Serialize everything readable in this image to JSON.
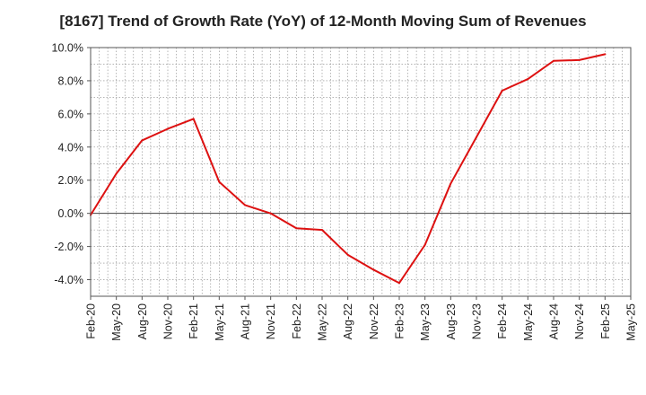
{
  "chart_data": {
    "type": "line",
    "title": "[8167]  Trend of Growth Rate (YoY) of 12-Month Moving Sum of Revenues",
    "xlabel": "",
    "ylabel": "",
    "ylim": [
      -5,
      10
    ],
    "yticks": [
      {
        "value": 10,
        "label": "10.0%"
      },
      {
        "value": 8,
        "label": "8.0%"
      },
      {
        "value": 6,
        "label": "6.0%"
      },
      {
        "value": 4,
        "label": "4.0%"
      },
      {
        "value": 2,
        "label": "2.0%"
      },
      {
        "value": 0,
        "label": "0.0%"
      },
      {
        "value": -2,
        "label": "-2.0%"
      },
      {
        "value": -4,
        "label": "-4.0%"
      }
    ],
    "x_tick_labels": [
      "Feb-20",
      "May-20",
      "Aug-20",
      "Nov-20",
      "Feb-21",
      "May-21",
      "Aug-21",
      "Nov-21",
      "Feb-22",
      "May-22",
      "Aug-22",
      "Nov-22",
      "Feb-23",
      "May-23",
      "Aug-23",
      "Nov-23",
      "Feb-24",
      "May-24",
      "Aug-24",
      "Nov-24",
      "Feb-25",
      "May-25"
    ],
    "grid": true,
    "legend": "none",
    "series": [
      {
        "color": "#dd1111",
        "x": [
          "Feb-20",
          "May-20",
          "Aug-20",
          "Nov-20",
          "Feb-21",
          "May-21",
          "Aug-21",
          "Nov-21",
          "Feb-22",
          "May-22",
          "Aug-22",
          "Nov-22",
          "Feb-23",
          "May-23",
          "Aug-23",
          "Nov-23",
          "Feb-24",
          "May-24",
          "Aug-24",
          "Nov-24",
          "Feb-25"
        ],
        "values": [
          -0.1,
          2.4,
          4.4,
          5.1,
          5.7,
          1.9,
          0.5,
          0.0,
          -0.9,
          -1.0,
          -2.5,
          -3.4,
          -4.2,
          -1.9,
          1.8,
          4.6,
          7.4,
          8.1,
          9.2,
          9.25,
          9.6
        ]
      }
    ],
    "colors": {
      "line": "#dd1111",
      "zero_line": "#444444",
      "grid": "#888888"
    }
  }
}
